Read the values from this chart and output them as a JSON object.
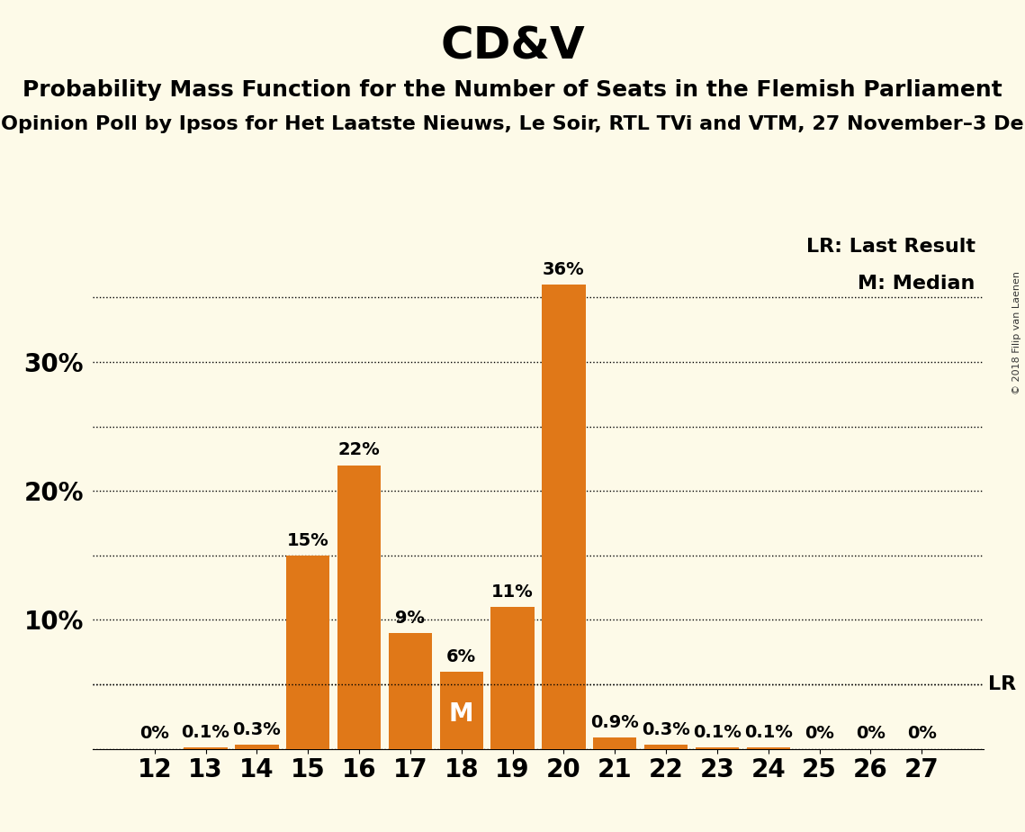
{
  "title": "CD&V",
  "subtitle1": "Probability Mass Function for the Number of Seats in the Flemish Parliament",
  "subtitle2": "Opinion Poll by Ipsos for Het Laatste Nieuws, Le Soir, RTL TVi and VTM, 27 November–3 De",
  "copyright": "© 2018 Filip van Laenen",
  "seats": [
    12,
    13,
    14,
    15,
    16,
    17,
    18,
    19,
    20,
    21,
    22,
    23,
    24,
    25,
    26,
    27
  ],
  "probabilities": [
    0.0,
    0.1,
    0.3,
    15.0,
    22.0,
    9.0,
    6.0,
    11.0,
    36.0,
    0.9,
    0.3,
    0.1,
    0.1,
    0.0,
    0.0,
    0.0
  ],
  "labels": [
    "0%",
    "0.1%",
    "0.3%",
    "15%",
    "22%",
    "9%",
    "6%",
    "11%",
    "36%",
    "0.9%",
    "0.3%",
    "0.1%",
    "0.1%",
    "0%",
    "0%",
    "0%"
  ],
  "bar_color": "#E07818",
  "background_color": "#FDFAE8",
  "median_seat": 18,
  "last_result_value": 5.0,
  "ytick_minor": [
    5,
    15,
    25,
    35
  ],
  "ytick_major": [
    10,
    20,
    30
  ],
  "ytick_labels": [
    "10%",
    "20%",
    "30%"
  ],
  "legend_lr": "LR: Last Result",
  "legend_m": "M: Median",
  "title_fontsize": 36,
  "subtitle1_fontsize": 18,
  "subtitle2_fontsize": 16,
  "tick_fontsize": 20,
  "label_fontsize": 14,
  "legend_fontsize": 16
}
